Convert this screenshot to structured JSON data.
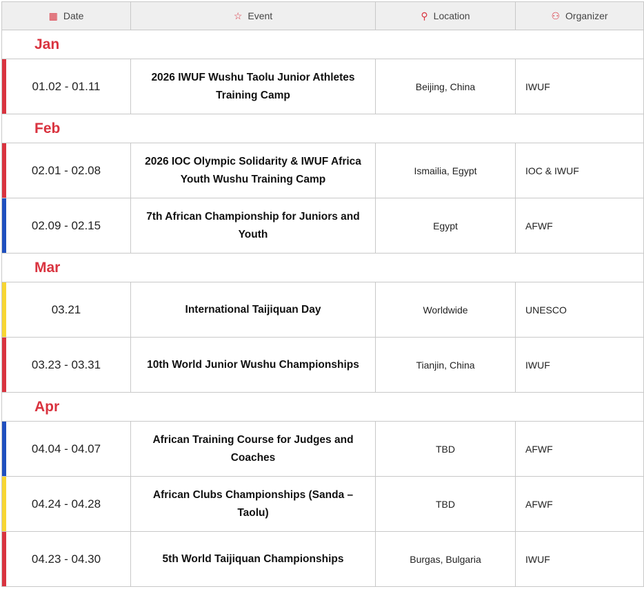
{
  "colors": {
    "red": "#d9333f",
    "blue": "#1f4fbf",
    "yellow": "#f7d633"
  },
  "header": [
    {
      "label": "Date",
      "icon": "calendar-icon",
      "glyph": "▦"
    },
    {
      "label": "Event",
      "icon": "star-icon",
      "glyph": "☆"
    },
    {
      "label": "Location",
      "icon": "map-pin-icon",
      "glyph": "⚲"
    },
    {
      "label": "Organizer",
      "icon": "people-icon",
      "glyph": "⚇"
    }
  ],
  "months": [
    {
      "name": "Jan",
      "events": [
        {
          "date": "01.02 - 01.11",
          "event": "2026 IWUF Wushu Taolu Junior Athletes Training Camp",
          "location": "Beijing, China",
          "organizer": "IWUF",
          "color": "red"
        }
      ]
    },
    {
      "name": "Feb",
      "events": [
        {
          "date": "02.01 - 02.08",
          "event": "2026 IOC Olympic Solidarity & IWUF Africa Youth Wushu Training Camp",
          "location": "Ismailia, Egypt",
          "organizer": "IOC & IWUF",
          "color": "red"
        },
        {
          "date": "02.09 - 02.15",
          "event": "7th African Championship for Juniors and Youth",
          "location": "Egypt",
          "organizer": "AFWF",
          "color": "blue"
        }
      ]
    },
    {
      "name": "Mar",
      "events": [
        {
          "date": "03.21",
          "event": "International Taijiquan Day",
          "location": "Worldwide",
          "organizer": "UNESCO",
          "color": "yellow"
        },
        {
          "date": "03.23 - 03.31",
          "event": "10th World Junior Wushu Championships",
          "location": "Tianjin, China",
          "organizer": "IWUF",
          "color": "red"
        }
      ]
    },
    {
      "name": "Apr",
      "events": [
        {
          "date": "04.04 - 04.07",
          "event": "African Training Course for Judges and Coaches",
          "location": "TBD",
          "organizer": "AFWF",
          "color": "blue"
        },
        {
          "date": "04.24 - 04.28",
          "event": "African Clubs Championships (Sanda – Taolu)",
          "location": "TBD",
          "organizer": "AFWF",
          "color": "yellow"
        },
        {
          "date": "04.23 - 04.30",
          "event": "5th World Taijiquan Championships",
          "location": "Burgas, Bulgaria",
          "organizer": "IWUF",
          "color": "red"
        }
      ]
    }
  ]
}
